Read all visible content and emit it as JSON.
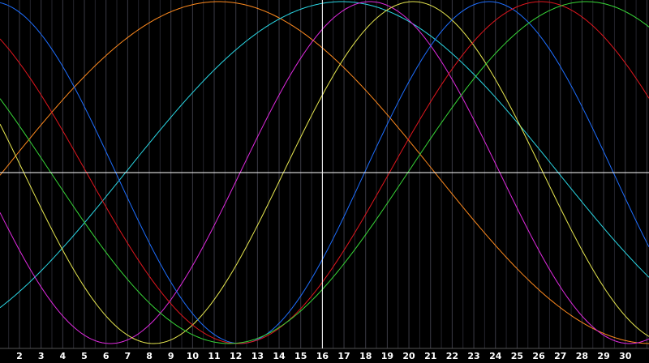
{
  "chart_data": {
    "type": "line",
    "title": "",
    "xlabel": "",
    "ylabel": "",
    "xlim": [
      1,
      31
    ],
    "ylim": [
      -1.07,
      1
    ],
    "x_ticks": [
      2,
      3,
      4,
      5,
      6,
      7,
      8,
      9,
      10,
      11,
      12,
      13,
      14,
      15,
      16,
      17,
      18,
      19,
      20,
      21,
      22,
      23,
      24,
      25,
      26,
      27,
      28,
      29,
      30
    ],
    "cursor": {
      "x": 16,
      "y": 0
    },
    "grid": true,
    "legend": "none",
    "series": [
      {
        "color": "#ff8a1e",
        "waveform": "cosine",
        "period": 40,
        "peak_x": 11.2,
        "amplitude": 1.0
      },
      {
        "color": "#2ad8e6",
        "waveform": "cosine",
        "period": 40,
        "peak_x": 16.9,
        "amplitude": 1.0
      },
      {
        "color": "#e02ae0",
        "waveform": "cosine",
        "period": 24,
        "peak_x": 18.2,
        "amplitude": 1.0
      },
      {
        "color": "#e8e850",
        "waveform": "cosine",
        "period": 24,
        "peak_x": 20.2,
        "amplitude": 1.0
      },
      {
        "color": "#1e6eff",
        "waveform": "cosine",
        "period": 23,
        "peak_x": 23.7,
        "amplitude": 1.0
      },
      {
        "color": "#e0161e",
        "waveform": "cosine",
        "period": 28,
        "peak_x": 26.1,
        "amplitude": 1.0
      },
      {
        "color": "#38d838",
        "waveform": "cosine",
        "period": 33,
        "peak_x": 28.2,
        "amplitude": 1.0
      }
    ]
  }
}
